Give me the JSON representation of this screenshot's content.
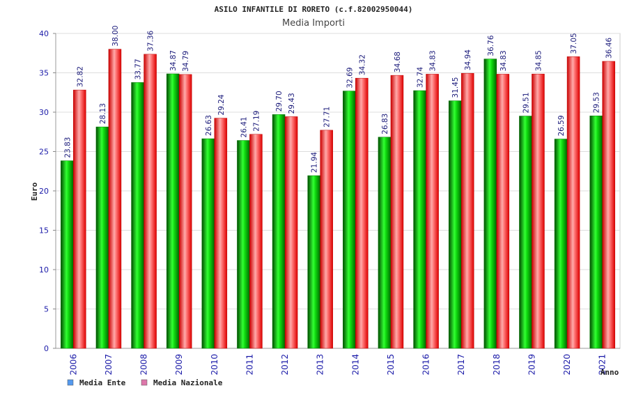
{
  "chart_data": {
    "type": "bar",
    "title": "ASILO INFANTILE DI RORETO (c.f.82002950044)",
    "subtitle": "Media Importi",
    "xlabel": "Anno",
    "ylabel": "Euro",
    "ylim": [
      0,
      40
    ],
    "yticks": [
      0,
      5,
      10,
      15,
      20,
      25,
      30,
      35,
      40
    ],
    "grid": true,
    "legend_position": "bottom-left",
    "categories": [
      "2006",
      "2007",
      "2008",
      "2009",
      "2010",
      "2011",
      "2012",
      "2013",
      "2014",
      "2015",
      "2016",
      "2017",
      "2018",
      "2019",
      "2020",
      "2021"
    ],
    "series": [
      {
        "name": "Media Ente",
        "color": "#00bb00",
        "legend_color": "#5599ee",
        "values": [
          23.83,
          28.13,
          33.77,
          34.87,
          26.63,
          26.41,
          29.7,
          21.94,
          32.69,
          26.83,
          32.74,
          31.45,
          36.76,
          29.51,
          26.59,
          29.53
        ],
        "labels": [
          "23.83",
          "28.13",
          "33.77",
          "34.87",
          "26.63",
          "26.41",
          "29.70",
          "21.94",
          "32.69",
          "26.83",
          "32.74",
          "31.45",
          "36.76",
          "29.51",
          "26.59",
          "29.53"
        ]
      },
      {
        "name": "Media Nazionale",
        "color": "#ee1111",
        "legend_color": "#dd77aa",
        "values": [
          32.82,
          38.0,
          37.36,
          34.79,
          29.24,
          27.19,
          29.43,
          27.71,
          34.32,
          34.68,
          34.83,
          34.94,
          34.83,
          34.85,
          37.05,
          36.46
        ],
        "labels": [
          "32.82",
          "38.00",
          "37.36",
          "34.79",
          "29.24",
          "27.19",
          "29.43",
          "27.71",
          "34.32",
          "34.68",
          "34.83",
          "34.94",
          "34.83",
          "34.85",
          "37.05",
          "36.46"
        ]
      }
    ]
  }
}
